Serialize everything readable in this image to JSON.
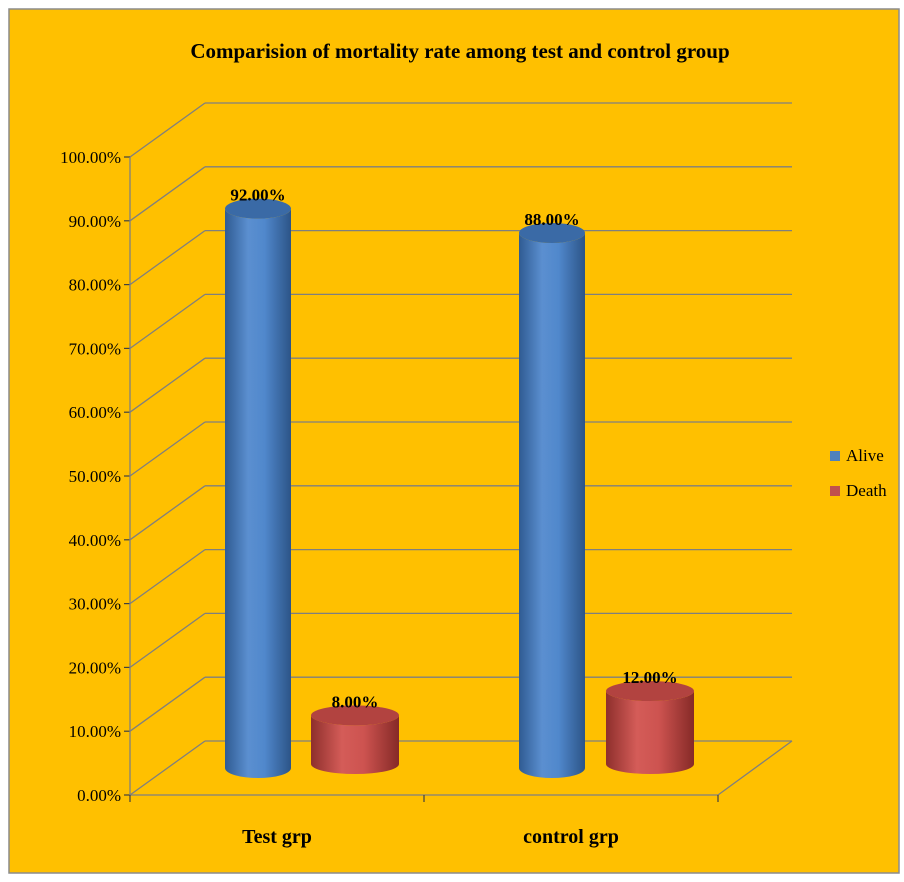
{
  "chart_data": {
    "type": "bar",
    "style": "3d-cylinder",
    "title": "Comparision of mortality rate among test and control group",
    "categories": [
      "Test grp",
      "control grp"
    ],
    "series": [
      {
        "name": "Alive",
        "values": [
          92.0,
          88.0
        ],
        "color": "#4F81BD",
        "value_labels": [
          "92.00%",
          "88.00%"
        ]
      },
      {
        "name": "Death",
        "values": [
          8.0,
          12.0
        ],
        "color": "#C0504D",
        "value_labels": [
          "8.00%",
          "12.00%"
        ]
      }
    ],
    "ylim": [
      0,
      100
    ],
    "yticks": [
      "0.00%",
      "10.00%",
      "20.00%",
      "30.00%",
      "40.00%",
      "50.00%",
      "60.00%",
      "70.00%",
      "80.00%",
      "90.00%",
      "100.00%"
    ],
    "grid": true,
    "legend_position": "right",
    "background_color": "#FFC000",
    "gridline_color": "#7F7F7F"
  }
}
